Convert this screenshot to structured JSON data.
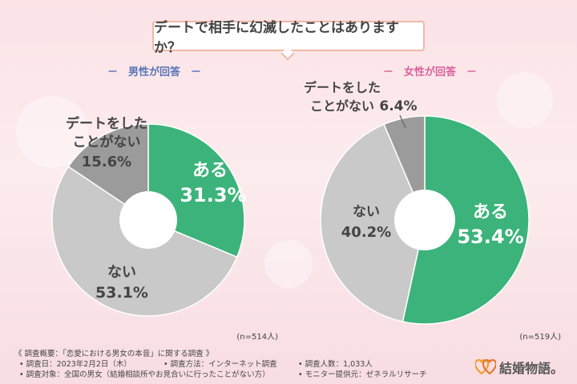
{
  "title": "デートで相手に幻滅したことはありますか？",
  "charts_meta": [
    {
      "panel_label": "－　男性が回答　－",
      "n_label": "(n=514人)"
    },
    {
      "panel_label": "－　女性が回答　－",
      "n_label": "(n=519人)"
    }
  ],
  "chart_data": [
    {
      "type": "pie",
      "slices": [
        {
          "label": "ある",
          "value": 31.3,
          "value_text": "31.3%",
          "color": "#3cb37a"
        },
        {
          "label": "ない",
          "value": 53.1,
          "value_text": "53.1%",
          "color": "#c9c9c9"
        },
        {
          "label_lines": [
            "デートをした",
            "ことがない"
          ],
          "value": 15.6,
          "value_text": "15.6%",
          "color": "#9b9b9b"
        }
      ]
    },
    {
      "type": "pie",
      "slices": [
        {
          "label": "ある",
          "value": 53.4,
          "value_text": "53.4%",
          "color": "#3cb37a"
        },
        {
          "label": "ない",
          "value": 40.2,
          "value_text": "40.2%",
          "color": "#c9c9c9"
        },
        {
          "label_lines": [
            "デートをした",
            "ことがない"
          ],
          "value": 6.4,
          "value_text": "6.4%",
          "color": "#9b9b9b"
        }
      ]
    }
  ],
  "footer": {
    "overview": "《 調査概要：「恋愛における男女の本音」に関する調査 》",
    "date": "• 調査日：2023年2月2日（木）",
    "method": "• 調査方法：インターネット調査",
    "count": "• 調査人数：1,033人",
    "target": "• 調査対象：全国の男女（結婚相談所やお見合いに行ったことがない方）",
    "provider": "• モニター提供元：ゼネラルリサーチ",
    "logo_text": "結婚物語。"
  },
  "colors": {
    "accent_green": "#3cb37a",
    "heart": "#f0a030"
  }
}
